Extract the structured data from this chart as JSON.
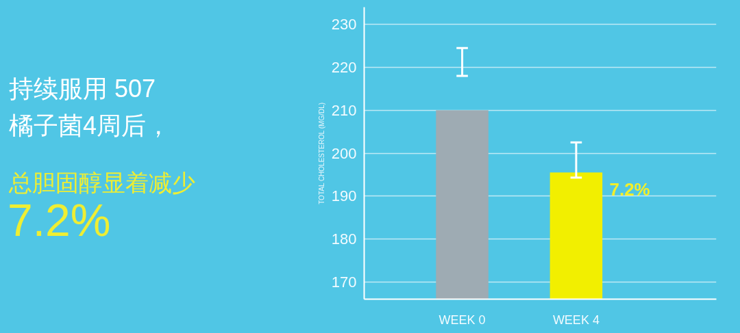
{
  "chart_data": {
    "type": "bar",
    "title": "持续服用 507\n橘子菌4周后，",
    "subtitle": "总胆固醇显着减少",
    "ylabel": "TOTAL CHOLESTEROL (MG/DL)",
    "categories": [
      "WEEK 0",
      "WEEK 4"
    ],
    "values": [
      210,
      195.5
    ],
    "colors": [
      "#9eabb3",
      "#f2ef00"
    ],
    "errors": [
      [
        218,
        224.5
      ],
      [
        194.3,
        202.5
      ]
    ],
    "ylim": [
      166,
      234
    ],
    "yticks": [
      170,
      180,
      190,
      200,
      210,
      220,
      230
    ],
    "grid": "y",
    "annotations": [
      "7.2%",
      "7.2%"
    ]
  }
}
